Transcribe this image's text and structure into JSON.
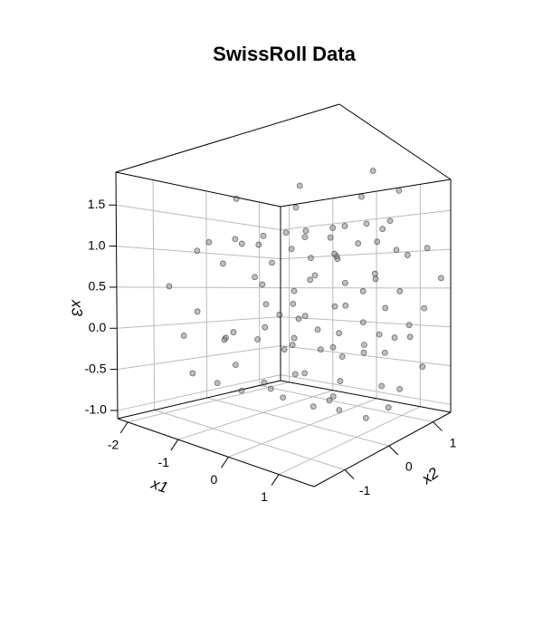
{
  "chart_data": {
    "type": "scatter3d",
    "title": "SwissRoll Data",
    "xlabel": "x1",
    "ylabel": "x2",
    "zlabel": "x3",
    "color": "#808080",
    "xlim": [
      -2.2,
      1.7
    ],
    "ylim": [
      -1.7,
      1.4
    ],
    "zlim": [
      -1.1,
      1.9
    ],
    "xticks": [
      -2,
      -1,
      0,
      1
    ],
    "yticks": [
      -1,
      0,
      1
    ],
    "zticks": [
      {
        "value": -1,
        "label": "-1.0"
      },
      -0.5,
      {
        "value": 0,
        "label": "0.0"
      },
      0.5,
      {
        "value": 1,
        "label": "1.0"
      },
      1.5
    ],
    "grid": true,
    "x": [
      -1.8,
      -0.4,
      1.1,
      -1.3,
      0.3,
      1.4,
      -2.0,
      -0.7,
      0.8,
      -1.5,
      0.1,
      1.3,
      -0.9,
      0.5,
      1.5,
      -1.7,
      -0.2,
      0.9,
      -1.1,
      0.4,
      1.2,
      -1.9,
      -0.6,
      0.7,
      -1.4,
      0.0,
      1.5,
      -0.8,
      0.6,
      1.0,
      -1.6,
      -0.3,
      1.3,
      -2.0,
      -0.9,
      0.5,
      -1.2,
      0.2,
      1.4,
      -1.7,
      -0.5,
      0.9,
      -1.0,
      0.7,
      1.2,
      -1.9,
      -0.1,
      1.5,
      -1.3,
      0.3,
      0.8,
      -1.6,
      -0.8,
      1.1,
      -0.7,
      0.5,
      1.4,
      -1.8,
      -0.2,
      1.0,
      -1.1,
      0.4,
      1.5,
      -2.0,
      -0.6,
      0.6,
      -1.4,
      0.1,
      1.3,
      -0.9,
      0.8,
      1.2,
      -1.7,
      -0.4,
      1.4,
      -1.2,
      0.2,
      0.9,
      -1.9,
      -0.7,
      1.1,
      -1.5,
      0.0,
      1.5,
      -0.8,
      0.6,
      1.3,
      -1.6,
      -0.3,
      0.7,
      -1.0,
      0.4,
      1.2,
      -1.8,
      -0.5,
      1.0
    ],
    "y": [
      0.0,
      0.0,
      0.0,
      0.16,
      0.16,
      0.16,
      0.33,
      0.33,
      0.33,
      0.49,
      0.49,
      0.49,
      0.61,
      0.61,
      0.61,
      0.69,
      0.69,
      0.69,
      0.7,
      0.7,
      0.7,
      0.65,
      0.65,
      0.65,
      0.53,
      0.53,
      0.53,
      0.35,
      0.35,
      0.35,
      0.12,
      0.12,
      0.12,
      -0.14,
      -0.14,
      -0.14,
      -0.41,
      -0.41,
      -0.41,
      -0.66,
      -0.66,
      -0.66,
      -0.86,
      -0.86,
      -0.86,
      -1.0,
      -1.0,
      -1.0,
      -1.05,
      -1.05,
      -1.05,
      -1.01,
      -1.01,
      -1.01,
      -0.87,
      -0.87,
      -0.87,
      -0.64,
      -0.64,
      -0.64,
      -0.34,
      -0.34,
      -0.34,
      0.02,
      0.02,
      0.02,
      0.39,
      0.39,
      0.39,
      0.74,
      0.74,
      0.74,
      1.05,
      1.05,
      1.05,
      1.27,
      1.27,
      1.27,
      1.39,
      1.39,
      1.39,
      1.38,
      1.38,
      1.38,
      1.25,
      1.25,
      1.25,
      0.99,
      0.99,
      0.99,
      0.63,
      0.63,
      0.63,
      0.2,
      0.2,
      0.2
    ],
    "z": [
      -0.2,
      -0.2,
      -0.2,
      -0.2,
      -0.2,
      -0.2,
      -0.16,
      -0.16,
      -0.16,
      -0.07,
      -0.07,
      -0.07,
      0.07,
      0.07,
      0.07,
      0.25,
      0.25,
      0.25,
      0.45,
      0.45,
      0.45,
      0.66,
      0.66,
      0.66,
      0.85,
      0.85,
      0.85,
      1.0,
      1.0,
      1.0,
      1.1,
      1.1,
      1.1,
      1.13,
      1.13,
      1.13,
      1.09,
      1.09,
      1.09,
      0.96,
      0.96,
      0.96,
      0.76,
      0.76,
      0.76,
      0.51,
      0.51,
      0.51,
      0.21,
      0.21,
      0.21,
      -0.09,
      -0.09,
      -0.09,
      -0.37,
      -0.37,
      -0.37,
      -0.61,
      -0.61,
      -0.61,
      -0.78,
      -0.78,
      -0.78,
      -0.86,
      -0.86,
      -0.86,
      -0.83,
      -0.83,
      -0.83,
      -0.7,
      -0.7,
      -0.7,
      -0.47,
      -0.47,
      -0.47,
      -0.15,
      -0.15,
      -0.15,
      0.23,
      0.23,
      0.23,
      0.63,
      0.63,
      0.63,
      1.01,
      1.01,
      1.01,
      1.35,
      1.35,
      1.35,
      1.61,
      1.61,
      1.61,
      1.76,
      1.76,
      1.76
    ]
  }
}
